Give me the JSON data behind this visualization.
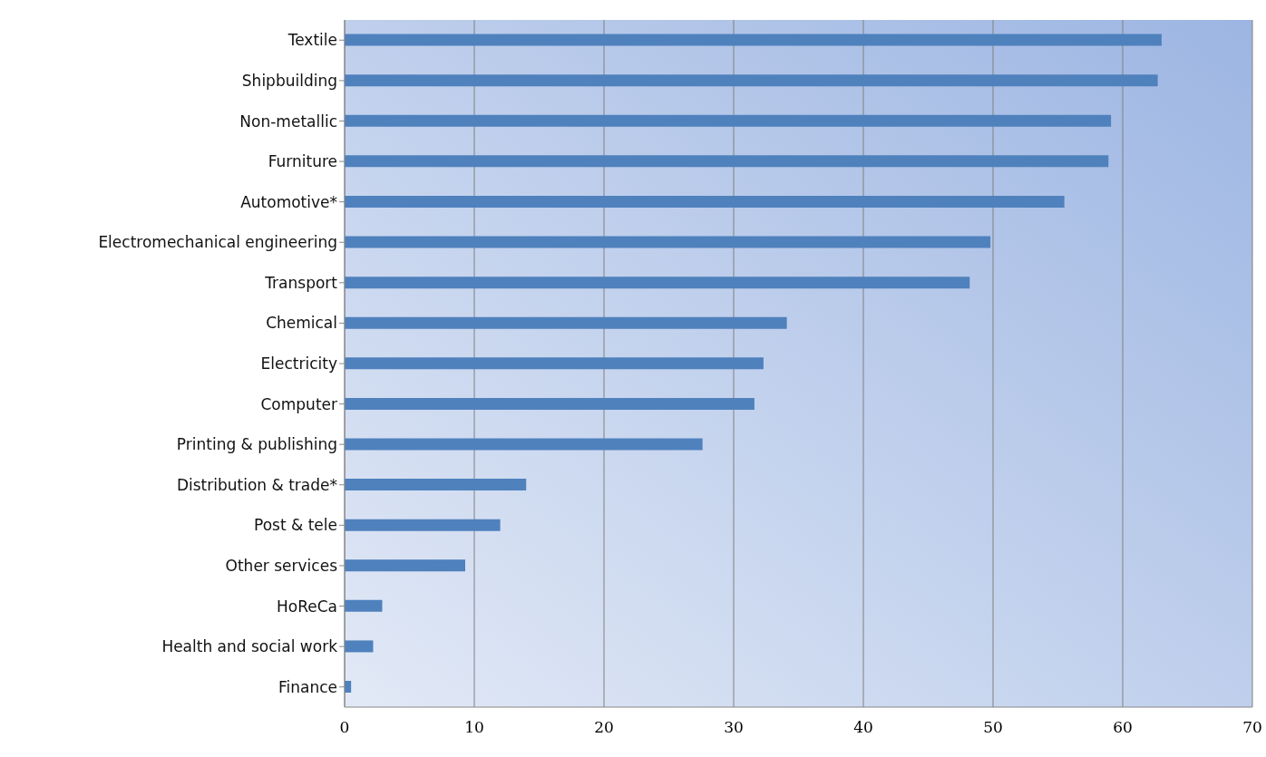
{
  "chart_data": {
    "type": "bar",
    "orientation": "horizontal",
    "categories": [
      "Textile",
      "Shipbuilding",
      "Non-metallic",
      "Furniture",
      "Automotive*",
      "Electromechanical engineering",
      "Transport",
      "Chemical",
      "Electricity",
      "Computer",
      "Printing & publishing",
      "Distribution & trade*",
      "Post & tele",
      "Other services",
      "HoReCa",
      "Health and social work",
      "Finance"
    ],
    "values": [
      63.0,
      62.7,
      59.1,
      58.9,
      55.5,
      49.8,
      48.2,
      34.1,
      32.3,
      31.6,
      27.6,
      14.0,
      12.0,
      9.3,
      2.9,
      2.2,
      0.5
    ],
    "color": "#4f81bd",
    "xlim": [
      0,
      70
    ],
    "xticks": [
      0,
      10,
      20,
      30,
      40,
      50,
      60,
      70
    ],
    "grid": "x"
  }
}
